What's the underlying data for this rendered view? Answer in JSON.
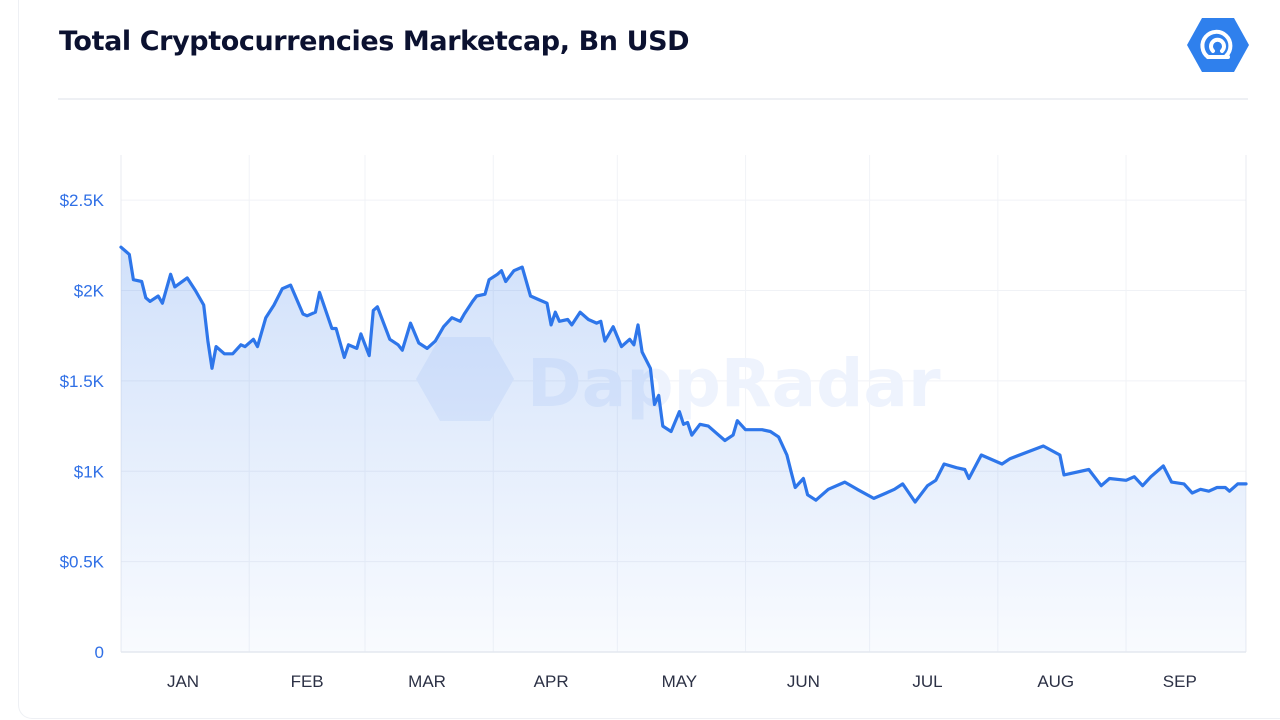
{
  "header": {
    "title": "Total Cryptocurrencies Marketcap, Bn USD",
    "logo_icon": "dappradar-logo-icon"
  },
  "watermark": "DappRadar",
  "colors": {
    "line": "#2e76ea",
    "title": "#0b1130",
    "axis_label": "#2f6fe6",
    "logo": "#2f80ed"
  },
  "chart_data": {
    "type": "area",
    "title": "Total Cryptocurrencies Marketcap, Bn USD",
    "xlabel": "",
    "ylabel": "",
    "x_range": [
      "2022-01-01",
      "2022-09-30"
    ],
    "ylim": [
      0,
      2750
    ],
    "y_ticks": [
      {
        "value": 0,
        "label": "0"
      },
      {
        "value": 500,
        "label": "$0.5K"
      },
      {
        "value": 1000,
        "label": "$1K"
      },
      {
        "value": 1500,
        "label": "$1.5K"
      },
      {
        "value": 2000,
        "label": "$2K"
      },
      {
        "value": 2500,
        "label": "$2.5K"
      }
    ],
    "x_ticks": [
      {
        "date": "2022-01-16",
        "label": "JAN"
      },
      {
        "date": "2022-02-15",
        "label": "FEB"
      },
      {
        "date": "2022-03-16",
        "label": "MAR"
      },
      {
        "date": "2022-04-15",
        "label": "APR"
      },
      {
        "date": "2022-05-16",
        "label": "MAY"
      },
      {
        "date": "2022-06-15",
        "label": "JUN"
      },
      {
        "date": "2022-07-15",
        "label": "JUL"
      },
      {
        "date": "2022-08-15",
        "label": "AUG"
      },
      {
        "date": "2022-09-14",
        "label": "SEP"
      }
    ],
    "grid": true,
    "legend": "none",
    "series": [
      {
        "values": [
          [
            "2022-01-01",
            2240
          ],
          [
            "2022-01-03",
            2200
          ],
          [
            "2022-01-04",
            2060
          ],
          [
            "2022-01-06",
            2050
          ],
          [
            "2022-01-07",
            1960
          ],
          [
            "2022-01-08",
            1940
          ],
          [
            "2022-01-10",
            1970
          ],
          [
            "2022-01-11",
            1930
          ],
          [
            "2022-01-13",
            2090
          ],
          [
            "2022-01-14",
            2020
          ],
          [
            "2022-01-17",
            2070
          ],
          [
            "2022-01-19",
            2000
          ],
          [
            "2022-01-21",
            1920
          ],
          [
            "2022-01-22",
            1720
          ],
          [
            "2022-01-23",
            1570
          ],
          [
            "2022-01-24",
            1690
          ],
          [
            "2022-01-26",
            1650
          ],
          [
            "2022-01-28",
            1650
          ],
          [
            "2022-01-30",
            1700
          ],
          [
            "2022-01-31",
            1690
          ],
          [
            "2022-02-02",
            1730
          ],
          [
            "2022-02-03",
            1690
          ],
          [
            "2022-02-05",
            1850
          ],
          [
            "2022-02-07",
            1920
          ],
          [
            "2022-02-09",
            2010
          ],
          [
            "2022-02-11",
            2030
          ],
          [
            "2022-02-14",
            1870
          ],
          [
            "2022-02-15",
            1860
          ],
          [
            "2022-02-17",
            1880
          ],
          [
            "2022-02-18",
            1990
          ],
          [
            "2022-02-21",
            1790
          ],
          [
            "2022-02-22",
            1790
          ],
          [
            "2022-02-24",
            1630
          ],
          [
            "2022-02-25",
            1700
          ],
          [
            "2022-02-27",
            1680
          ],
          [
            "2022-02-28",
            1760
          ],
          [
            "2022-03-02",
            1640
          ],
          [
            "2022-03-03",
            1890
          ],
          [
            "2022-03-04",
            1910
          ],
          [
            "2022-03-07",
            1730
          ],
          [
            "2022-03-09",
            1700
          ],
          [
            "2022-03-10",
            1670
          ],
          [
            "2022-03-12",
            1820
          ],
          [
            "2022-03-14",
            1710
          ],
          [
            "2022-03-16",
            1680
          ],
          [
            "2022-03-18",
            1720
          ],
          [
            "2022-03-20",
            1800
          ],
          [
            "2022-03-22",
            1850
          ],
          [
            "2022-03-24",
            1830
          ],
          [
            "2022-03-25",
            1870
          ],
          [
            "2022-03-27",
            1940
          ],
          [
            "2022-03-28",
            1970
          ],
          [
            "2022-03-30",
            1980
          ],
          [
            "2022-03-31",
            2060
          ],
          [
            "2022-04-02",
            2090
          ],
          [
            "2022-04-03",
            2110
          ],
          [
            "2022-04-04",
            2050
          ],
          [
            "2022-04-06",
            2110
          ],
          [
            "2022-04-08",
            2130
          ],
          [
            "2022-04-10",
            1970
          ],
          [
            "2022-04-12",
            1950
          ],
          [
            "2022-04-14",
            1930
          ],
          [
            "2022-04-15",
            1810
          ],
          [
            "2022-04-16",
            1880
          ],
          [
            "2022-04-17",
            1830
          ],
          [
            "2022-04-19",
            1840
          ],
          [
            "2022-04-20",
            1810
          ],
          [
            "2022-04-22",
            1880
          ],
          [
            "2022-04-24",
            1840
          ],
          [
            "2022-04-26",
            1820
          ],
          [
            "2022-04-27",
            1830
          ],
          [
            "2022-04-28",
            1720
          ],
          [
            "2022-04-30",
            1800
          ],
          [
            "2022-05-02",
            1690
          ],
          [
            "2022-05-04",
            1730
          ],
          [
            "2022-05-05",
            1700
          ],
          [
            "2022-05-06",
            1810
          ],
          [
            "2022-05-07",
            1660
          ],
          [
            "2022-05-09",
            1570
          ],
          [
            "2022-05-10",
            1370
          ],
          [
            "2022-05-11",
            1420
          ],
          [
            "2022-05-12",
            1250
          ],
          [
            "2022-05-14",
            1220
          ],
          [
            "2022-05-16",
            1330
          ],
          [
            "2022-05-17",
            1260
          ],
          [
            "2022-05-18",
            1270
          ],
          [
            "2022-05-19",
            1200
          ],
          [
            "2022-05-21",
            1260
          ],
          [
            "2022-05-23",
            1250
          ],
          [
            "2022-05-25",
            1210
          ],
          [
            "2022-05-27",
            1170
          ],
          [
            "2022-05-29",
            1200
          ],
          [
            "2022-05-30",
            1280
          ],
          [
            "2022-06-01",
            1230
          ],
          [
            "2022-06-05",
            1230
          ],
          [
            "2022-06-07",
            1220
          ],
          [
            "2022-06-09",
            1190
          ],
          [
            "2022-06-11",
            1090
          ],
          [
            "2022-06-12",
            1000
          ],
          [
            "2022-06-13",
            910
          ],
          [
            "2022-06-15",
            960
          ],
          [
            "2022-06-16",
            870
          ],
          [
            "2022-06-18",
            840
          ],
          [
            "2022-06-21",
            900
          ],
          [
            "2022-06-25",
            940
          ],
          [
            "2022-06-28",
            900
          ],
          [
            "2022-07-02",
            850
          ],
          [
            "2022-07-05",
            880
          ],
          [
            "2022-07-07",
            900
          ],
          [
            "2022-07-09",
            930
          ],
          [
            "2022-07-12",
            830
          ],
          [
            "2022-07-15",
            920
          ],
          [
            "2022-07-17",
            950
          ],
          [
            "2022-07-19",
            1040
          ],
          [
            "2022-07-22",
            1020
          ],
          [
            "2022-07-24",
            1010
          ],
          [
            "2022-07-25",
            960
          ],
          [
            "2022-07-28",
            1090
          ],
          [
            "2022-08-02",
            1040
          ],
          [
            "2022-08-04",
            1070
          ],
          [
            "2022-08-12",
            1140
          ],
          [
            "2022-08-16",
            1090
          ],
          [
            "2022-08-17",
            980
          ],
          [
            "2022-08-23",
            1010
          ],
          [
            "2022-08-26",
            920
          ],
          [
            "2022-08-28",
            960
          ],
          [
            "2022-09-01",
            950
          ],
          [
            "2022-09-03",
            970
          ],
          [
            "2022-09-05",
            920
          ],
          [
            "2022-09-07",
            970
          ],
          [
            "2022-09-10",
            1030
          ],
          [
            "2022-09-12",
            940
          ],
          [
            "2022-09-15",
            930
          ],
          [
            "2022-09-17",
            880
          ],
          [
            "2022-09-19",
            900
          ],
          [
            "2022-09-21",
            890
          ],
          [
            "2022-09-23",
            910
          ],
          [
            "2022-09-25",
            910
          ],
          [
            "2022-09-26",
            890
          ],
          [
            "2022-09-28",
            930
          ],
          [
            "2022-09-30",
            930
          ]
        ]
      }
    ]
  }
}
